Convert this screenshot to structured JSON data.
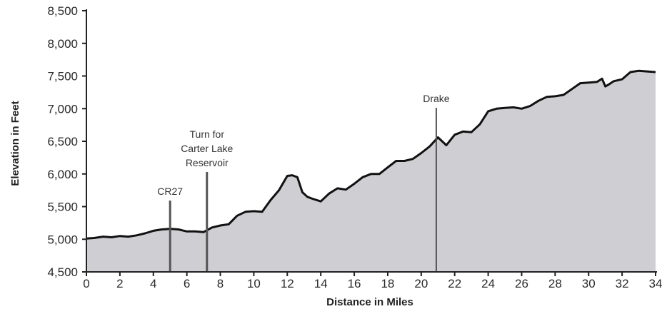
{
  "chart_data": {
    "type": "area",
    "xlabel": "Distance in Miles",
    "ylabel": "Elevation in Feet",
    "xlim": [
      0,
      34
    ],
    "ylim": [
      4500,
      8500
    ],
    "x_ticks": [
      0,
      2,
      4,
      6,
      8,
      10,
      12,
      14,
      16,
      18,
      20,
      22,
      24,
      26,
      28,
      30,
      32,
      34
    ],
    "x_tick_labels": [
      "0",
      "2",
      "4",
      "6",
      "8",
      "10",
      "12",
      "14",
      "16",
      "18",
      "20",
      "22",
      "24",
      "26",
      "28",
      "30",
      "32",
      "34"
    ],
    "y_ticks": [
      4500,
      5000,
      5500,
      6000,
      6500,
      7000,
      7500,
      8000,
      8500
    ],
    "y_tick_labels": [
      "4,500",
      "5,000",
      "5,500",
      "6,000",
      "6,500",
      "7,000",
      "7,500",
      "8,000",
      "8,500"
    ],
    "grid": false,
    "series": [
      {
        "x": [
          0,
          0.5,
          1,
          1.5,
          2,
          2.5,
          3,
          3.5,
          4,
          4.5,
          5,
          5.5,
          6,
          6.5,
          7,
          7.5,
          8,
          8.5,
          9,
          9.5,
          10,
          10.5,
          11,
          11.5,
          12,
          12.3,
          12.6,
          12.9,
          13.2,
          13.5,
          14,
          14.5,
          15,
          15.5,
          16,
          16.5,
          17,
          17.5,
          18,
          18.5,
          19,
          19.5,
          20,
          20.5,
          21,
          21.5,
          22,
          22.5,
          23,
          23.5,
          24,
          24.5,
          25,
          25.5,
          26,
          26.5,
          27,
          27.5,
          28,
          28.5,
          29,
          29.5,
          30,
          30.5,
          30.8,
          31,
          31.2,
          31.5,
          32,
          32.5,
          33,
          33.5,
          34
        ],
        "values": [
          5010,
          5020,
          5040,
          5030,
          5050,
          5040,
          5060,
          5090,
          5130,
          5150,
          5160,
          5150,
          5120,
          5120,
          5110,
          5180,
          5210,
          5230,
          5360,
          5420,
          5430,
          5420,
          5600,
          5750,
          5970,
          5980,
          5950,
          5720,
          5650,
          5620,
          5580,
          5700,
          5780,
          5760,
          5850,
          5950,
          6000,
          6000,
          6100,
          6200,
          6200,
          6230,
          6320,
          6420,
          6560,
          6440,
          6600,
          6650,
          6640,
          6760,
          6960,
          7000,
          7010,
          7020,
          7000,
          7040,
          7120,
          7180,
          7190,
          7210,
          7300,
          7390,
          7400,
          7410,
          7460,
          7340,
          7370,
          7420,
          7450,
          7560,
          7580,
          7570,
          7560
        ]
      }
    ],
    "annotations": [
      {
        "label": "CR27",
        "x": 5.0
      },
      {
        "label": "Turn for\nCarter Lake\nReservoir",
        "x": 7.2
      },
      {
        "label": "Drake",
        "x": 20.9
      }
    ],
    "colors": {
      "fill": "#cfcfd3",
      "line": "#111111",
      "axis": "#222222",
      "marker": "#555555"
    }
  }
}
